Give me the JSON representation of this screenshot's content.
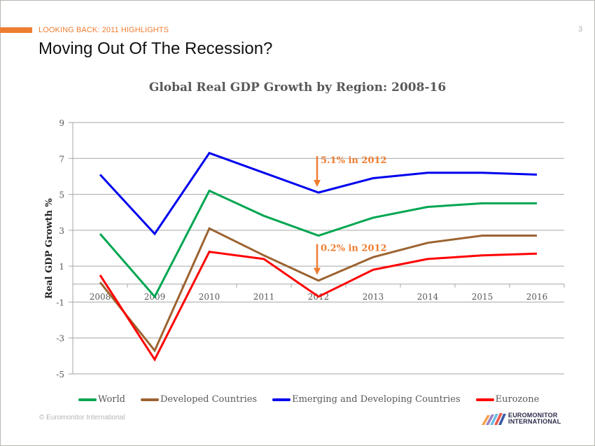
{
  "header": {
    "section_label": "LOOKING BACK: 2011 HIGHLIGHTS",
    "page_number": "3",
    "title": "Moving Out Of The Recession?"
  },
  "footer": {
    "copyright": "© Euromonitor International",
    "logo_line1": "EUROMONITOR",
    "logo_line2": "INTERNATIONAL"
  },
  "colors": {
    "accent": "#ee7d31",
    "world": "#00a651",
    "developed": "#9c6331",
    "emerging": "#0000ee",
    "eurozone": "#ff0000",
    "grid": "#a6a6a6"
  },
  "chart_data": {
    "type": "line",
    "title": "Global Real GDP Growth by Region: 2008-16",
    "xlabel": "",
    "ylabel": "Real GDP Growth %",
    "x": [
      "2008",
      "2009",
      "2010",
      "2011",
      "2012",
      "2013",
      "2014",
      "2015",
      "2016"
    ],
    "ylim": [
      -5,
      9
    ],
    "yticks": [
      9,
      7,
      5,
      3,
      1,
      -1,
      -3,
      -5
    ],
    "ytick_labels": [
      "9",
      "7",
      "5",
      "3",
      "1",
      "-1",
      "-3",
      "-5"
    ],
    "grid": true,
    "legend_position": "bottom",
    "series": [
      {
        "key": "world",
        "name": "World",
        "values": [
          2.8,
          -0.7,
          5.2,
          3.8,
          2.7,
          3.7,
          4.3,
          4.5,
          4.5
        ]
      },
      {
        "key": "developed",
        "name": "Developed Countries",
        "values": [
          0.1,
          -3.7,
          3.1,
          1.6,
          0.2,
          1.5,
          2.3,
          2.7,
          2.7
        ]
      },
      {
        "key": "emerging",
        "name": "Emerging and Developing Countries",
        "values": [
          6.1,
          2.8,
          7.3,
          6.2,
          5.1,
          5.9,
          6.2,
          6.2,
          6.1
        ]
      },
      {
        "key": "eurozone",
        "name": "Eurozone",
        "values": [
          0.5,
          -4.2,
          1.8,
          1.4,
          -0.7,
          0.8,
          1.4,
          1.6,
          1.7
        ]
      }
    ],
    "annotations": [
      {
        "text": "5.1% in 2012",
        "x": "2012",
        "series": "emerging",
        "value": 5.1
      },
      {
        "text": "0.2% in 2012",
        "x": "2012",
        "series": "developed",
        "value": 0.2
      }
    ]
  }
}
